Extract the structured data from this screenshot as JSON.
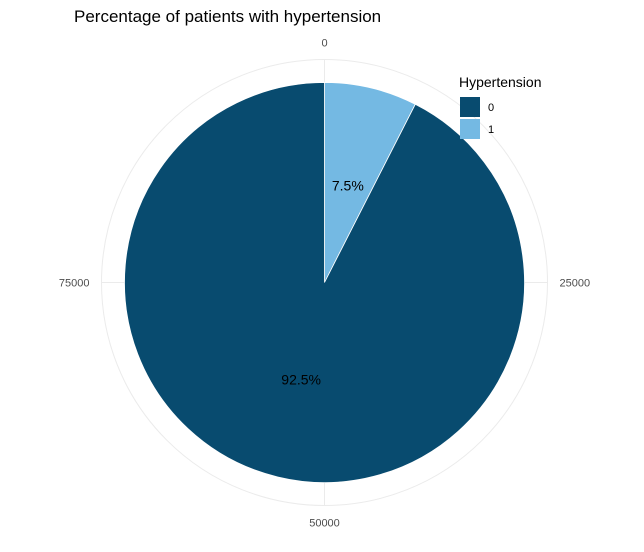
{
  "chart_data": {
    "type": "pie",
    "title": "Percentage of patients with hypertension",
    "legend": {
      "title": "Hypertension",
      "position": "top-right"
    },
    "total": 100000,
    "slices": [
      {
        "label": "1",
        "value": 7500,
        "percent_label": "7.5%",
        "color": "#74b9e3"
      },
      {
        "label": "0",
        "value": 92500,
        "percent_label": "92.5%",
        "color": "#084b6f"
      }
    ],
    "legend_order": [
      "0",
      "1"
    ],
    "ticks": [
      {
        "value": 0,
        "label": "0"
      },
      {
        "value": 25000,
        "label": "25000"
      },
      {
        "value": 50000,
        "label": "50000"
      },
      {
        "value": 75000,
        "label": "75000"
      }
    ],
    "grid": true,
    "colors": {
      "0": "#084b6f",
      "1": "#74b9e3",
      "grid": "#ebebeb",
      "tick_text": "#4d4d4d"
    }
  }
}
